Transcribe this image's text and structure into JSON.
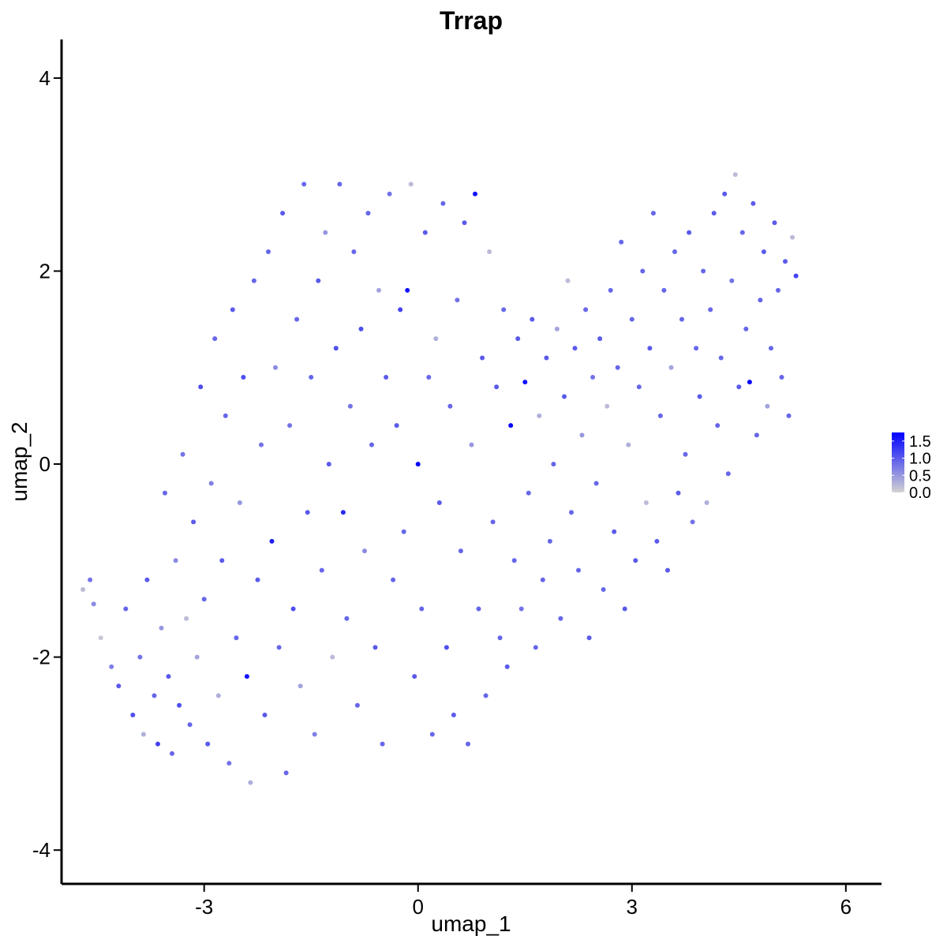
{
  "chart_data": {
    "type": "scatter",
    "title": "Trrap",
    "xlabel": "umap_1",
    "ylabel": "umap_2",
    "xlim": [
      -5.0,
      6.5
    ],
    "ylim": [
      -4.35,
      4.4
    ],
    "x_ticks": [
      -3,
      0,
      3,
      6
    ],
    "x_tick_labels": [
      "-3",
      "0",
      "3",
      "6"
    ],
    "y_ticks": [
      -4,
      -2,
      0,
      2,
      4
    ],
    "y_tick_labels": [
      "-4",
      "-2",
      "0",
      "2",
      "4"
    ],
    "grid": false,
    "legend": {
      "placement": "right",
      "color_low": "#d3d3d3",
      "color_high": "#0000ff",
      "range": [
        0,
        1.75
      ],
      "ticks": [
        0.0,
        0.5,
        1.0,
        1.5
      ],
      "tick_labels": [
        "0.0",
        "0.5",
        "1.0",
        "1.5"
      ]
    },
    "point_color_low": "#d3d3d3",
    "point_color_high": "#0000ff",
    "points": [
      [
        -4.7,
        -1.3,
        0.2
      ],
      [
        -4.6,
        -1.2,
        0.8
      ],
      [
        -4.55,
        -1.45,
        0.6
      ],
      [
        -4.45,
        -1.8,
        0.1
      ],
      [
        -4.3,
        -2.1,
        0.7
      ],
      [
        -4.2,
        -2.3,
        1.0
      ],
      [
        -4.1,
        -1.5,
        0.9
      ],
      [
        -4.0,
        -2.6,
        1.1
      ],
      [
        -3.9,
        -2.0,
        0.8
      ],
      [
        -3.85,
        -2.8,
        0.3
      ],
      [
        -3.8,
        -1.2,
        1.0
      ],
      [
        -3.7,
        -2.4,
        0.9
      ],
      [
        -3.65,
        -2.9,
        1.2
      ],
      [
        -3.6,
        -1.7,
        0.5
      ],
      [
        -3.55,
        -0.3,
        0.9
      ],
      [
        -3.5,
        -2.2,
        1.0
      ],
      [
        -3.45,
        -3.0,
        0.9
      ],
      [
        -3.4,
        -1.0,
        0.6
      ],
      [
        -3.35,
        -2.5,
        1.1
      ],
      [
        -3.3,
        0.1,
        0.8
      ],
      [
        -3.25,
        -1.6,
        0.2
      ],
      [
        -3.2,
        -2.7,
        0.9
      ],
      [
        -3.15,
        -0.6,
        1.0
      ],
      [
        -3.1,
        -2.0,
        0.4
      ],
      [
        -3.05,
        0.8,
        1.1
      ],
      [
        -3.0,
        -1.4,
        0.9
      ],
      [
        -2.95,
        -2.9,
        1.0
      ],
      [
        -2.9,
        -0.2,
        0.7
      ],
      [
        -2.85,
        1.3,
        0.9
      ],
      [
        -2.8,
        -2.4,
        0.3
      ],
      [
        -2.75,
        -1.0,
        1.0
      ],
      [
        -2.7,
        0.5,
        0.9
      ],
      [
        -2.65,
        -3.1,
        0.8
      ],
      [
        -2.6,
        1.6,
        1.0
      ],
      [
        -2.55,
        -1.8,
        0.9
      ],
      [
        -2.5,
        -0.4,
        0.5
      ],
      [
        -2.45,
        0.9,
        1.1
      ],
      [
        -2.4,
        -2.2,
        1.6
      ],
      [
        -2.35,
        -3.3,
        0.3
      ],
      [
        -2.3,
        1.9,
        0.9
      ],
      [
        -2.25,
        -1.2,
        1.0
      ],
      [
        -2.2,
        0.2,
        0.8
      ],
      [
        -2.15,
        -2.6,
        1.0
      ],
      [
        -2.1,
        2.2,
        0.9
      ],
      [
        -2.05,
        -0.8,
        1.5
      ],
      [
        -2.0,
        1.0,
        0.6
      ],
      [
        -1.95,
        -1.9,
        0.9
      ],
      [
        -1.9,
        2.6,
        1.0
      ],
      [
        -1.85,
        -3.2,
        0.9
      ],
      [
        -1.8,
        0.4,
        0.8
      ],
      [
        -1.75,
        -1.5,
        1.1
      ],
      [
        -1.7,
        1.5,
        0.9
      ],
      [
        -1.65,
        -2.3,
        0.4
      ],
      [
        -1.6,
        2.9,
        0.9
      ],
      [
        -1.55,
        -0.5,
        1.0
      ],
      [
        -1.5,
        0.9,
        0.9
      ],
      [
        -1.45,
        -2.8,
        0.7
      ],
      [
        -1.4,
        1.9,
        1.0
      ],
      [
        -1.35,
        -1.1,
        0.9
      ],
      [
        -1.3,
        2.4,
        0.5
      ],
      [
        -1.25,
        0.0,
        1.0
      ],
      [
        -1.2,
        -2.0,
        0.2
      ],
      [
        -1.15,
        1.2,
        1.1
      ],
      [
        -1.1,
        2.9,
        0.9
      ],
      [
        -1.05,
        -0.5,
        1.4
      ],
      [
        -1.0,
        -1.6,
        0.9
      ],
      [
        -0.95,
        0.6,
        0.8
      ],
      [
        -0.9,
        2.2,
        0.9
      ],
      [
        -0.85,
        -2.5,
        0.9
      ],
      [
        -0.8,
        1.4,
        1.1
      ],
      [
        -0.75,
        -0.9,
        0.6
      ],
      [
        -0.7,
        2.6,
        0.9
      ],
      [
        -0.65,
        0.2,
        0.9
      ],
      [
        -0.6,
        -1.9,
        1.0
      ],
      [
        -0.55,
        1.8,
        0.4
      ],
      [
        -0.5,
        -2.9,
        0.9
      ],
      [
        -0.45,
        0.9,
        1.0
      ],
      [
        -0.4,
        2.8,
        0.8
      ],
      [
        -0.35,
        -1.2,
        0.9
      ],
      [
        -0.3,
        0.4,
        1.0
      ],
      [
        -0.25,
        1.6,
        1.2
      ],
      [
        -0.2,
        -0.7,
        0.9
      ],
      [
        -0.15,
        1.8,
        1.6
      ],
      [
        -0.1,
        2.9,
        0.2
      ],
      [
        -0.05,
        -2.2,
        1.0
      ],
      [
        0.0,
        0.0,
        1.7
      ],
      [
        0.05,
        -1.5,
        0.9
      ],
      [
        0.1,
        2.4,
        1.0
      ],
      [
        0.15,
        0.9,
        0.9
      ],
      [
        0.2,
        -2.8,
        0.9
      ],
      [
        0.25,
        1.3,
        0.3
      ],
      [
        0.3,
        -0.4,
        1.0
      ],
      [
        0.35,
        2.7,
        0.9
      ],
      [
        0.4,
        -1.9,
        1.1
      ],
      [
        0.45,
        0.6,
        0.9
      ],
      [
        0.5,
        -2.6,
        1.0
      ],
      [
        0.55,
        1.7,
        0.8
      ],
      [
        0.6,
        -0.9,
        0.9
      ],
      [
        0.65,
        2.5,
        1.0
      ],
      [
        0.7,
        -2.9,
        0.9
      ],
      [
        0.75,
        0.2,
        0.5
      ],
      [
        0.8,
        2.8,
        1.6
      ],
      [
        0.85,
        -1.5,
        0.9
      ],
      [
        0.9,
        1.1,
        1.0
      ],
      [
        0.95,
        -2.4,
        0.9
      ],
      [
        1.0,
        2.2,
        0.2
      ],
      [
        1.05,
        -0.6,
        0.9
      ],
      [
        1.1,
        0.8,
        1.0
      ],
      [
        1.15,
        -1.8,
        0.9
      ],
      [
        1.2,
        1.6,
        0.9
      ],
      [
        1.25,
        -2.1,
        1.0
      ],
      [
        1.3,
        0.4,
        1.7
      ],
      [
        1.35,
        -1.0,
        0.9
      ],
      [
        1.4,
        1.3,
        1.0
      ],
      [
        1.45,
        -1.5,
        0.8
      ],
      [
        1.5,
        0.85,
        1.6
      ],
      [
        1.55,
        -0.3,
        0.9
      ],
      [
        1.6,
        1.5,
        1.0
      ],
      [
        1.65,
        -1.9,
        0.9
      ],
      [
        1.7,
        0.5,
        0.3
      ],
      [
        1.75,
        -1.2,
        0.9
      ],
      [
        1.8,
        1.1,
        1.0
      ],
      [
        1.85,
        -0.8,
        0.9
      ],
      [
        1.9,
        0.0,
        0.9
      ],
      [
        1.95,
        1.4,
        0.4
      ],
      [
        2.0,
        -1.6,
        0.9
      ],
      [
        2.05,
        0.7,
        1.0
      ],
      [
        2.1,
        1.9,
        0.2
      ],
      [
        2.15,
        -0.5,
        0.9
      ],
      [
        2.2,
        1.2,
        1.0
      ],
      [
        2.25,
        -1.1,
        0.9
      ],
      [
        2.3,
        0.3,
        0.5
      ],
      [
        2.35,
        1.6,
        0.9
      ],
      [
        2.4,
        -1.8,
        1.0
      ],
      [
        2.45,
        0.9,
        0.8
      ],
      [
        2.5,
        -0.2,
        0.9
      ],
      [
        2.55,
        1.3,
        1.0
      ],
      [
        2.6,
        -1.3,
        0.9
      ],
      [
        2.65,
        0.6,
        0.2
      ],
      [
        2.7,
        1.8,
        0.9
      ],
      [
        2.75,
        -0.7,
        1.0
      ],
      [
        2.8,
        1.0,
        0.9
      ],
      [
        2.85,
        2.3,
        0.9
      ],
      [
        2.9,
        -1.5,
        1.0
      ],
      [
        2.95,
        0.2,
        0.3
      ],
      [
        3.0,
        1.5,
        0.9
      ],
      [
        3.05,
        -1.0,
        1.0
      ],
      [
        3.1,
        0.8,
        0.9
      ],
      [
        3.15,
        2.0,
        0.9
      ],
      [
        3.2,
        -0.4,
        0.2
      ],
      [
        3.25,
        1.2,
        1.0
      ],
      [
        3.3,
        2.6,
        0.9
      ],
      [
        3.35,
        -0.8,
        1.0
      ],
      [
        3.4,
        0.5,
        0.9
      ],
      [
        3.45,
        1.8,
        0.9
      ],
      [
        3.5,
        -1.1,
        1.0
      ],
      [
        3.55,
        1.0,
        0.4
      ],
      [
        3.6,
        2.2,
        0.9
      ],
      [
        3.65,
        -0.3,
        1.0
      ],
      [
        3.7,
        1.5,
        0.9
      ],
      [
        3.75,
        0.1,
        0.9
      ],
      [
        3.8,
        2.4,
        1.0
      ],
      [
        3.85,
        -0.6,
        0.8
      ],
      [
        3.9,
        1.2,
        0.9
      ],
      [
        3.95,
        0.7,
        1.0
      ],
      [
        4.0,
        2.0,
        0.9
      ],
      [
        4.05,
        -0.4,
        0.3
      ],
      [
        4.1,
        1.6,
        0.9
      ],
      [
        4.15,
        2.6,
        1.0
      ],
      [
        4.2,
        0.4,
        0.9
      ],
      [
        4.25,
        1.1,
        0.9
      ],
      [
        4.3,
        2.8,
        1.0
      ],
      [
        4.35,
        -0.1,
        0.9
      ],
      [
        4.4,
        1.9,
        0.8
      ],
      [
        4.45,
        3.0,
        0.2
      ],
      [
        4.5,
        0.8,
        1.0
      ],
      [
        4.55,
        2.4,
        0.9
      ],
      [
        4.6,
        1.4,
        0.9
      ],
      [
        4.65,
        0.85,
        1.7
      ],
      [
        4.7,
        2.7,
        1.0
      ],
      [
        4.75,
        0.3,
        0.9
      ],
      [
        4.8,
        1.7,
        0.9
      ],
      [
        4.85,
        2.2,
        1.0
      ],
      [
        4.9,
        0.6,
        0.4
      ],
      [
        4.95,
        1.2,
        0.9
      ],
      [
        5.0,
        2.5,
        1.0
      ],
      [
        5.05,
        1.8,
        0.9
      ],
      [
        5.1,
        0.9,
        0.9
      ],
      [
        5.15,
        2.1,
        1.0
      ],
      [
        5.2,
        0.5,
        0.9
      ],
      [
        5.25,
        2.35,
        0.2
      ],
      [
        5.3,
        1.95,
        1.2
      ]
    ]
  }
}
